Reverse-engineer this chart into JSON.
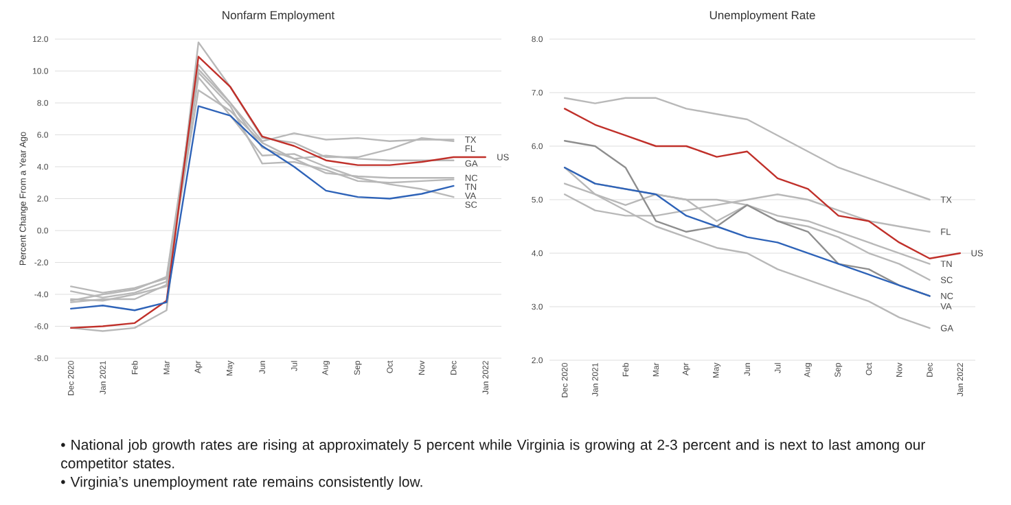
{
  "chart_data": [
    {
      "type": "line",
      "title": "Nonfarm Employment",
      "ylabel": "Percent Change From a Year Ago",
      "categories": [
        "Dec 2020",
        "Jan 2021",
        "Feb",
        "Mar",
        "Apr",
        "May",
        "Jun",
        "Jul",
        "Aug",
        "Sep",
        "Oct",
        "Nov",
        "Dec",
        "Jan 2022"
      ],
      "ylim": [
        -8,
        12
      ],
      "yticks": [
        {
          "value": -8,
          "label": "-8.0"
        },
        {
          "value": -6,
          "label": "-6.0"
        },
        {
          "value": -4,
          "label": "-4.0"
        },
        {
          "value": -2,
          "label": "-2.0"
        },
        {
          "value": 0,
          "label": "0.0"
        },
        {
          "value": 2,
          "label": "2.0"
        },
        {
          "value": 4,
          "label": "4.0"
        },
        {
          "value": 6,
          "label": "6.0"
        },
        {
          "value": 8,
          "label": "8.0"
        },
        {
          "value": 10,
          "label": "10.0"
        },
        {
          "value": 12,
          "label": "12.0"
        }
      ],
      "grid": "y",
      "series": [
        {
          "name": "TX",
          "color": "#b8b8b8",
          "values": [
            -4.4,
            -4.0,
            -3.7,
            -2.9,
            10.4,
            8.0,
            5.6,
            6.1,
            5.7,
            5.8,
            5.6,
            5.7,
            5.7,
            null
          ]
        },
        {
          "name": "FL",
          "color": "#b8b8b8",
          "values": [
            -6.1,
            -6.3,
            -6.1,
            -5.0,
            11.8,
            9.0,
            5.8,
            5.5,
            4.6,
            4.6,
            5.1,
            5.8,
            5.6,
            null
          ]
        },
        {
          "name": "GA",
          "color": "#b8b8b8",
          "values": [
            -4.5,
            -4.3,
            -4.3,
            -3.4,
            8.8,
            7.5,
            5.5,
            4.5,
            4.7,
            4.5,
            4.4,
            4.4,
            4.4,
            null
          ]
        },
        {
          "name": "NC",
          "color": "#b8b8b8",
          "values": [
            -3.8,
            -4.2,
            -3.9,
            -3.2,
            10.1,
            8.0,
            5.2,
            4.5,
            3.6,
            3.4,
            3.3,
            3.3,
            3.3,
            null
          ]
        },
        {
          "name": "TN",
          "color": "#b8b8b8",
          "values": [
            -3.5,
            -3.9,
            -3.6,
            -3.0,
            9.9,
            7.8,
            4.2,
            4.3,
            3.8,
            3.1,
            3.0,
            3.1,
            3.2,
            null
          ]
        },
        {
          "name": "SC",
          "color": "#b8b8b8",
          "values": [
            -4.3,
            -4.4,
            -4.0,
            -3.5,
            9.6,
            7.2,
            4.7,
            4.8,
            4.0,
            3.3,
            2.9,
            2.6,
            2.1,
            null
          ]
        },
        {
          "name": "US",
          "color": "#c0302a",
          "values": [
            -6.1,
            -6.0,
            -5.8,
            -4.4,
            10.9,
            9.0,
            5.9,
            5.3,
            4.4,
            4.1,
            4.1,
            4.3,
            4.6,
            4.6
          ]
        },
        {
          "name": "VA",
          "color": "#2e63b8",
          "values": [
            -4.9,
            -4.7,
            -5.0,
            -4.5,
            7.8,
            7.2,
            5.3,
            4.0,
            2.5,
            2.1,
            2.0,
            2.3,
            2.8,
            null
          ]
        }
      ],
      "annotations": [
        "• National job growth rates are rising at approximately 5 percent while Virginia is growing at 2-3 percent and is next to last among our competitor states.",
        "• Virginia’s unemployment rate remains consistently low."
      ]
    },
    {
      "type": "line",
      "title": "Unemployment Rate",
      "categories": [
        "Dec 2020",
        "Jan 2021",
        "Feb",
        "Mar",
        "Apr",
        "May",
        "Jun",
        "Jul",
        "Aug",
        "Sep",
        "Oct",
        "Nov",
        "Dec",
        "Jan 2022"
      ],
      "ylim": [
        2,
        8
      ],
      "yticks": [
        {
          "value": 2,
          "label": "2.0"
        },
        {
          "value": 3,
          "label": "3.0"
        },
        {
          "value": 4,
          "label": "4.0"
        },
        {
          "value": 5,
          "label": "5.0"
        },
        {
          "value": 6,
          "label": "6.0"
        },
        {
          "value": 7,
          "label": "7.0"
        },
        {
          "value": 8,
          "label": "8.0"
        }
      ],
      "grid": "y",
      "series": [
        {
          "name": "TX",
          "color": "#b8b8b8",
          "values": [
            6.9,
            6.8,
            6.9,
            6.9,
            6.7,
            6.6,
            6.5,
            6.2,
            5.9,
            5.6,
            5.4,
            5.2,
            5.0,
            null
          ]
        },
        {
          "name": "FL",
          "color": "#b8b8b8",
          "values": [
            5.1,
            4.8,
            4.7,
            4.7,
            4.8,
            4.9,
            5.0,
            5.1,
            5.0,
            4.8,
            4.6,
            4.5,
            4.4,
            null
          ]
        },
        {
          "name": "TN",
          "color": "#b8b8b8",
          "values": [
            5.6,
            5.3,
            5.2,
            5.1,
            5.0,
            4.6,
            4.9,
            4.7,
            4.6,
            4.4,
            4.2,
            4.0,
            3.8,
            null
          ]
        },
        {
          "name": "SC",
          "color": "#b8b8b8",
          "values": [
            5.3,
            5.1,
            4.9,
            5.1,
            5.0,
            5.0,
            4.9,
            4.6,
            4.5,
            4.3,
            4.0,
            3.8,
            3.5,
            null
          ]
        },
        {
          "name": "NC",
          "color": "#8e8e8e",
          "values": [
            6.1,
            6.0,
            5.6,
            4.6,
            4.4,
            4.5,
            4.9,
            4.6,
            4.4,
            3.8,
            3.7,
            3.4,
            3.2,
            null
          ]
        },
        {
          "name": "GA",
          "color": "#b8b8b8",
          "values": [
            5.6,
            5.1,
            4.8,
            4.5,
            4.3,
            4.1,
            4.0,
            3.7,
            3.5,
            3.3,
            3.1,
            2.8,
            2.6,
            null
          ]
        },
        {
          "name": "US",
          "color": "#c0302a",
          "values": [
            6.7,
            6.4,
            6.2,
            6.0,
            6.0,
            5.8,
            5.9,
            5.4,
            5.2,
            4.7,
            4.6,
            4.2,
            3.9,
            4.0
          ]
        },
        {
          "name": "VA",
          "color": "#2e63b8",
          "values": [
            5.6,
            5.3,
            5.2,
            5.1,
            4.7,
            4.5,
            4.3,
            4.2,
            4.0,
            3.8,
            3.6,
            3.4,
            3.2,
            null
          ]
        }
      ]
    }
  ]
}
